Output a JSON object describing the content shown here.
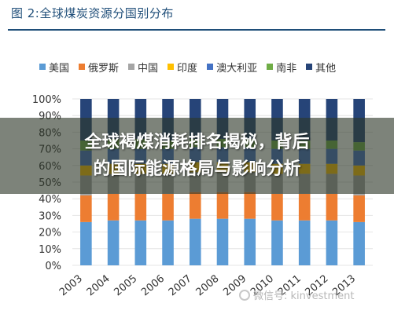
{
  "figure_title": "图 2:全球煤炭资源分国别分布",
  "overlay": {
    "line1": "全球褐煤消耗排名揭秘，背后",
    "line2": "的国际能源格局与影响分析"
  },
  "watermark": "微信号: kinvestment",
  "chart_data": {
    "type": "bar",
    "stacked": true,
    "percent": true,
    "title": "",
    "xlabel": "",
    "ylabel": "",
    "ylim": [
      0,
      100
    ],
    "yticks": [
      "0%",
      "10%",
      "20%",
      "30%",
      "40%",
      "50%",
      "60%",
      "70%",
      "80%",
      "90%",
      "100%"
    ],
    "legend_position": "top",
    "categories": [
      "2003",
      "2004",
      "2005",
      "2006",
      "2007",
      "2008",
      "2009",
      "2010",
      "2011",
      "2012",
      "2013"
    ],
    "series": [
      {
        "name": "美国",
        "color": "#5b9bd5",
        "values": [
          26,
          27,
          27,
          27,
          28,
          28,
          28,
          27,
          27,
          27,
          26
        ]
      },
      {
        "name": "俄罗斯",
        "color": "#ed7d31",
        "values": [
          16,
          16,
          16,
          16,
          16,
          16,
          16,
          16,
          16,
          16,
          16
        ]
      },
      {
        "name": "中国",
        "color": "#a5a5a5",
        "values": [
          12,
          12,
          12,
          12,
          12,
          12,
          12,
          12,
          12,
          12,
          12
        ]
      },
      {
        "name": "印度",
        "color": "#ffc000",
        "values": [
          6,
          6,
          6,
          6,
          6,
          6,
          6,
          6,
          6,
          6,
          6
        ]
      },
      {
        "name": "澳大利亚",
        "color": "#4472c4",
        "values": [
          9,
          9,
          9,
          9,
          9,
          9,
          9,
          9,
          9,
          9,
          9
        ]
      },
      {
        "name": "南非",
        "color": "#70ad47",
        "values": [
          6,
          6,
          6,
          5,
          5,
          5,
          5,
          5,
          5,
          5,
          5
        ]
      },
      {
        "name": "其他",
        "color": "#264478",
        "values": [
          25,
          24,
          24,
          25,
          24,
          24,
          24,
          25,
          25,
          25,
          26
        ]
      }
    ]
  }
}
